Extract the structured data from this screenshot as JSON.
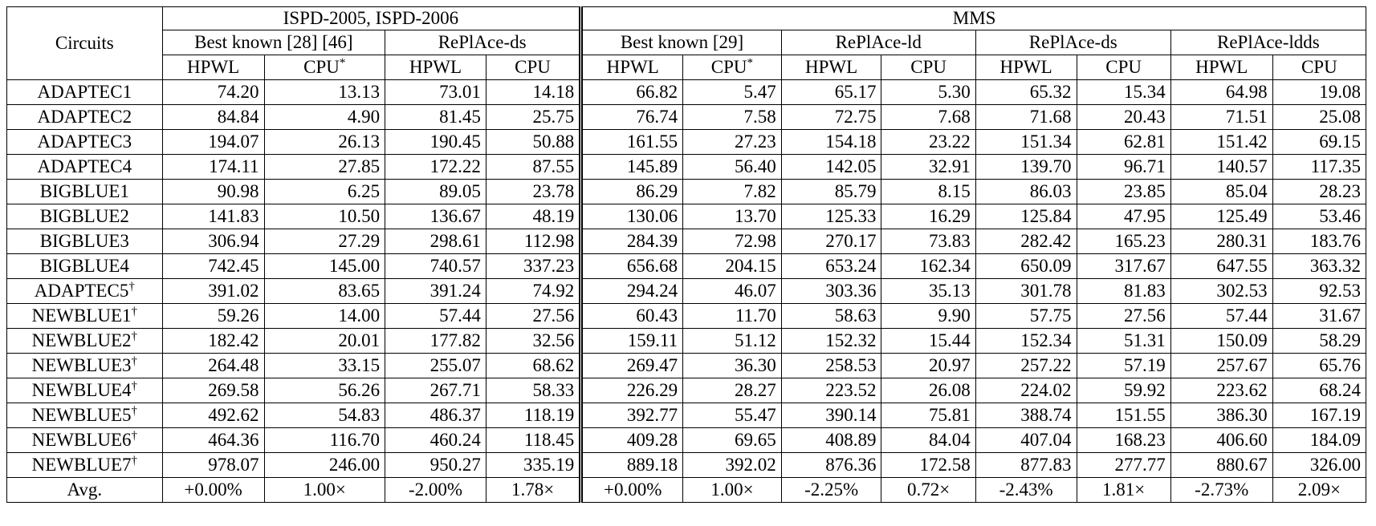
{
  "groups": {
    "ispd": "ISPD-2005, ISPD-2006",
    "mms": "MMS"
  },
  "subgroups": {
    "circuits": "Circuits",
    "best_ispd": "Best known [28] [46]",
    "replace_ds_ispd": "RePlAce-ds",
    "best_mms": "Best known [29]",
    "replace_ld": "RePlAce-ld",
    "replace_ds_mms": "RePlAce-ds",
    "replace_ldds": "RePlAce-ldds"
  },
  "cols": {
    "hpwl": "HPWL",
    "cpu": "CPU",
    "cpu_star": "CPU*"
  },
  "rows": [
    {
      "name": "ADAPTEC1",
      "mark": "",
      "v": [
        "74.20",
        "13.13",
        "73.01",
        "14.18",
        "66.82",
        "5.47",
        "65.17",
        "5.30",
        "65.32",
        "15.34",
        "64.98",
        "19.08"
      ],
      "b": [
        2,
        10
      ]
    },
    {
      "name": "ADAPTEC2",
      "mark": "",
      "v": [
        "84.84",
        "4.90",
        "81.45",
        "25.75",
        "76.74",
        "7.58",
        "72.75",
        "7.68",
        "71.68",
        "20.43",
        "71.51",
        "25.08"
      ],
      "b": [
        2,
        10
      ]
    },
    {
      "name": "ADAPTEC3",
      "mark": "",
      "v": [
        "194.07",
        "26.13",
        "190.45",
        "50.88",
        "161.55",
        "27.23",
        "154.18",
        "23.22",
        "151.34",
        "62.81",
        "151.42",
        "69.15"
      ],
      "b": [
        2,
        8
      ]
    },
    {
      "name": "ADAPTEC4",
      "mark": "",
      "v": [
        "174.11",
        "27.85",
        "172.22",
        "87.55",
        "145.89",
        "56.40",
        "142.05",
        "32.91",
        "139.70",
        "96.71",
        "140.57",
        "117.35"
      ],
      "b": [
        2,
        8
      ]
    },
    {
      "name": "BIGBLUE1",
      "mark": "",
      "v": [
        "90.98",
        "6.25",
        "89.05",
        "23.78",
        "86.29",
        "7.82",
        "85.79",
        "8.15",
        "86.03",
        "23.85",
        "85.04",
        "28.23"
      ],
      "b": [
        2,
        10
      ]
    },
    {
      "name": "BIGBLUE2",
      "mark": "",
      "v": [
        "141.83",
        "10.50",
        "136.67",
        "48.19",
        "130.06",
        "13.70",
        "125.33",
        "16.29",
        "125.84",
        "47.95",
        "125.49",
        "53.46"
      ],
      "b": [
        2,
        6
      ]
    },
    {
      "name": "BIGBLUE3",
      "mark": "",
      "v": [
        "306.94",
        "27.29",
        "298.61",
        "112.98",
        "284.39",
        "72.98",
        "270.17",
        "73.83",
        "282.42",
        "165.23",
        "280.31",
        "183.76"
      ],
      "b": [
        2,
        6
      ]
    },
    {
      "name": "BIGBLUE4",
      "mark": "",
      "v": [
        "742.45",
        "145.00",
        "740.57",
        "337.23",
        "656.68",
        "204.15",
        "653.24",
        "162.34",
        "650.09",
        "317.67",
        "647.55",
        "363.32"
      ],
      "b": [
        2,
        10
      ]
    },
    {
      "name": "ADAPTEC5",
      "mark": "†",
      "v": [
        "391.02",
        "83.65",
        "391.24",
        "74.92",
        "294.24",
        "46.07",
        "303.36",
        "35.13",
        "301.78",
        "81.83",
        "302.53",
        "92.53"
      ],
      "b": [
        0,
        4
      ]
    },
    {
      "name": "NEWBLUE1",
      "mark": "†",
      "v": [
        "59.26",
        "14.00",
        "57.44",
        "27.56",
        "60.43",
        "11.70",
        "58.63",
        "9.90",
        "57.75",
        "27.56",
        "57.44",
        "31.67"
      ],
      "b": [
        2,
        10
      ]
    },
    {
      "name": "NEWBLUE2",
      "mark": "†",
      "v": [
        "182.42",
        "20.01",
        "177.82",
        "32.56",
        "159.11",
        "51.12",
        "152.32",
        "15.44",
        "152.34",
        "51.31",
        "150.09",
        "58.29"
      ],
      "b": [
        2,
        10
      ]
    },
    {
      "name": "NEWBLUE3",
      "mark": "†",
      "v": [
        "264.48",
        "33.15",
        "255.07",
        "68.62",
        "269.47",
        "36.30",
        "258.53",
        "20.97",
        "257.22",
        "57.19",
        "257.67",
        "65.76"
      ],
      "b": [
        2,
        8
      ]
    },
    {
      "name": "NEWBLUE4",
      "mark": "†",
      "v": [
        "269.58",
        "56.26",
        "267.71",
        "58.33",
        "226.29",
        "28.27",
        "223.52",
        "26.08",
        "224.02",
        "59.92",
        "223.62",
        "68.24"
      ],
      "b": [
        2,
        6
      ]
    },
    {
      "name": "NEWBLUE5",
      "mark": "†",
      "v": [
        "492.62",
        "54.83",
        "486.37",
        "118.19",
        "392.77",
        "55.47",
        "390.14",
        "75.81",
        "388.74",
        "151.55",
        "386.30",
        "167.19"
      ],
      "b": [
        2,
        10
      ]
    },
    {
      "name": "NEWBLUE6",
      "mark": "†",
      "v": [
        "464.36",
        "116.70",
        "460.24",
        "118.45",
        "409.28",
        "69.65",
        "408.89",
        "84.04",
        "407.04",
        "168.23",
        "406.60",
        "184.09"
      ],
      "b": [
        2,
        10
      ]
    },
    {
      "name": "NEWBLUE7",
      "mark": "†",
      "v": [
        "978.07",
        "246.00",
        "950.27",
        "335.19",
        "889.18",
        "392.02",
        "876.36",
        "172.58",
        "877.83",
        "277.77",
        "880.67",
        "326.00"
      ],
      "b": [
        2,
        6
      ]
    }
  ],
  "avg": {
    "name": "Avg.",
    "v": [
      "+0.00%",
      "1.00×",
      "-2.00%",
      "1.78×",
      "+0.00%",
      "1.00×",
      "-2.25%",
      "0.72×",
      "-2.43%",
      "1.81×",
      "-2.73%",
      "2.09×"
    ]
  }
}
